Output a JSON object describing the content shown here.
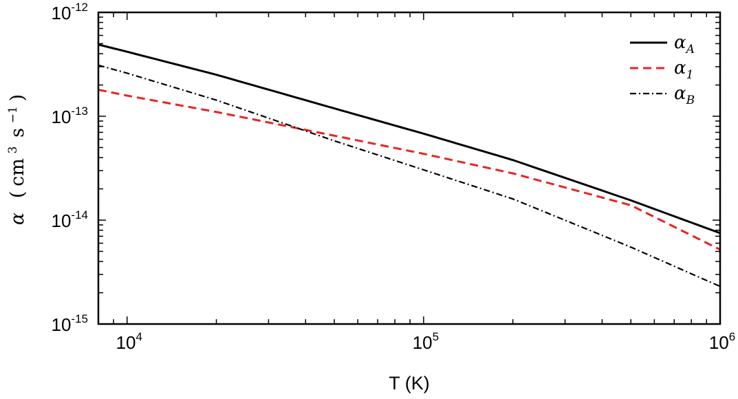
{
  "chart_data": {
    "type": "line",
    "xscale": "log",
    "yscale": "log",
    "xlim": [
      8000,
      1000000
    ],
    "ylim": [
      1e-15,
      1e-12
    ],
    "xlabel": "T (K)",
    "ylabel": {
      "symbol": "α",
      "lparen": "(",
      "unit1": "cm",
      "unit1_exp": "3",
      "unit2": "s",
      "unit2_exp": "−1",
      "rparen": ")"
    },
    "xticks": [
      {
        "value": 10000,
        "base": "10",
        "exp": "4"
      },
      {
        "value": 100000,
        "base": "10",
        "exp": "5"
      },
      {
        "value": 1000000,
        "base": "10",
        "exp": "6"
      }
    ],
    "yticks": [
      {
        "value": 1e-12,
        "base": "10",
        "exp": "-12"
      },
      {
        "value": 1e-13,
        "base": "10",
        "exp": "-13"
      },
      {
        "value": 1e-14,
        "base": "10",
        "exp": "-14"
      },
      {
        "value": 1e-15,
        "base": "10",
        "exp": "-15"
      }
    ],
    "grid": false,
    "legend_position": "top-right",
    "series": [
      {
        "name": "α_A",
        "name_base": "α",
        "name_sub": "A",
        "color": "#000000",
        "style": "solid",
        "x": [
          8000,
          10000,
          20000,
          50000,
          100000,
          200000,
          500000,
          1000000
        ],
        "y": [
          4.9e-13,
          4.18e-13,
          2.51e-13,
          1.19e-13,
          6.8e-14,
          3.79e-14,
          1.55e-14,
          7.5e-15
        ]
      },
      {
        "name": "α_1",
        "name_base": "α",
        "name_sub": "1",
        "color": "#e8251f",
        "style": "dashed",
        "x": [
          8000,
          10000,
          20000,
          50000,
          100000,
          200000,
          500000,
          1000000
        ],
        "y": [
          1.8e-13,
          1.58e-13,
          1.1e-13,
          6.5e-14,
          4.35e-14,
          2.82e-14,
          1.39e-14,
          5.2e-15
        ]
      },
      {
        "name": "α_B",
        "name_base": "α",
        "name_sub": "B",
        "color": "#000000",
        "style": "dashdot",
        "x": [
          8000,
          10000,
          20000,
          50000,
          100000,
          200000,
          500000,
          1000000
        ],
        "y": [
          3.1e-13,
          2.6e-13,
          1.43e-13,
          5.8e-14,
          3.05e-14,
          1.6e-14,
          5.5e-15,
          2.3e-15
        ]
      }
    ]
  }
}
